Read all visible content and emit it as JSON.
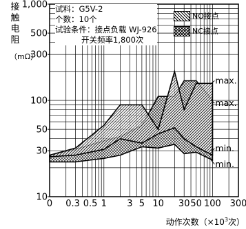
{
  "y_axis_label": [
    "接",
    "触",
    "电",
    "阻"
  ],
  "y_axis_unit": "（mΩ）",
  "x_axis_label": "动作次数（×10",
  "x_axis_label_exp": "3",
  "x_axis_label_tail": "次）",
  "info": {
    "line1": "试料：G5V-2",
    "line2": "个数：10个",
    "line3": "试验条件：接点负载 WJ-926",
    "line4": "开关频率1,800次"
  },
  "legend": {
    "no": "NO接点",
    "nc": "NC接点"
  },
  "chart_data": {
    "type": "area",
    "x_scale": "log",
    "y_scale": "log",
    "ylim": [
      10,
      1000
    ],
    "xlim": [
      0.1,
      300
    ],
    "y_ticks": [
      {
        "v": 1000,
        "label": "1,000"
      },
      {
        "v": 500,
        "label": "500"
      },
      {
        "v": 300,
        "label": "300"
      },
      {
        "v": 100,
        "label": "100"
      },
      {
        "v": 50,
        "label": "50"
      },
      {
        "v": 30,
        "label": "30"
      },
      {
        "v": 10,
        "label": "10"
      }
    ],
    "x_ticks": [
      {
        "v": 0.1,
        "label": "0"
      },
      {
        "v": 0.3,
        "label": "0.3"
      },
      {
        "v": 0.5,
        "label": "0.5"
      },
      {
        "v": 1,
        "label": "1"
      },
      {
        "v": 3,
        "label": "3"
      },
      {
        "v": 5,
        "label": "5"
      },
      {
        "v": 10,
        "label": "10"
      },
      {
        "v": 30,
        "label": "30"
      },
      {
        "v": 50,
        "label": "50"
      },
      {
        "v": 100,
        "label": "100"
      },
      {
        "v": 300,
        "label": "300"
      }
    ],
    "grid": true,
    "series": [
      {
        "name": "NO接点",
        "x": [
          0.1,
          0.3,
          1,
          2,
          5,
          10,
          20,
          30,
          50,
          100
        ],
        "max": [
          27,
          32,
          55,
          90,
          90,
          50,
          200,
          80,
          150,
          150
        ],
        "min": [
          26,
          27,
          31,
          40,
          36,
          45,
          52,
          40,
          33,
          27
        ]
      },
      {
        "name": "NC接点",
        "x": [
          0.1,
          0.3,
          1,
          2,
          5,
          10,
          20,
          30,
          50,
          100
        ],
        "max": [
          27,
          31,
          38,
          42,
          55,
          110,
          110,
          160,
          160,
          100
        ],
        "min": [
          23,
          23,
          25,
          27,
          33,
          32,
          35,
          28,
          29,
          24
        ]
      }
    ],
    "annotations": [
      {
        "text": "max.",
        "x": 100,
        "y": 150
      },
      {
        "text": "max.",
        "x": 100,
        "y": 100
      },
      {
        "text": "min.",
        "x": 100,
        "y": 30
      },
      {
        "text": "min.",
        "x": 100,
        "y": 24
      }
    ]
  }
}
